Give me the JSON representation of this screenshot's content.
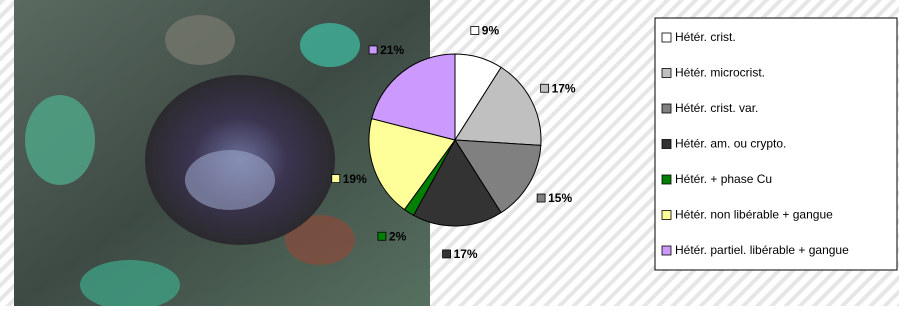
{
  "chart_data": {
    "type": "pie",
    "categories": [
      "Hétér. crist.",
      "Hétér. microcrist.",
      "Hétér. crist. var.",
      "Hétér. am. ou crypto.",
      "Hétér. + phase Cu",
      "Hétér. non libérable + gangue",
      "Hétér. partiel. libérable + gangue"
    ],
    "values": [
      9,
      17,
      15,
      17,
      2,
      19,
      21
    ],
    "value_labels": [
      "9%",
      "17%",
      "15%",
      "17%",
      "2%",
      "19%",
      "21%"
    ],
    "colors": [
      "#ffffff",
      "#c0c0c0",
      "#808080",
      "#333333",
      "#008000",
      "#ffff99",
      "#cc99ff"
    ]
  }
}
